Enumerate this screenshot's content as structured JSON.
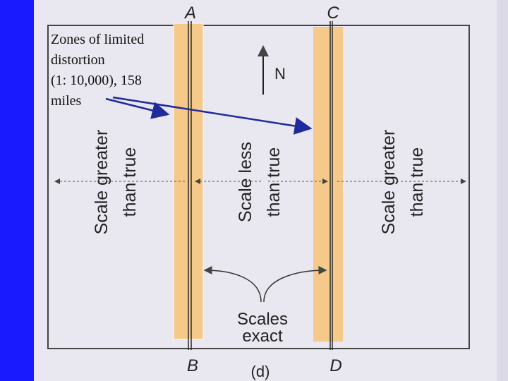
{
  "diagram": {
    "title": "(d)",
    "top_labels": {
      "left": "A",
      "right": "C"
    },
    "bottom_labels": {
      "left": "B",
      "right": "D"
    },
    "north_label": "N",
    "zones": {
      "left": [
        "Scale greater",
        "than true"
      ],
      "middle": [
        "Scale less",
        "than true"
      ],
      "right": [
        "Scale greater",
        "than true"
      ]
    },
    "scales_exact": [
      "Scales",
      "exact"
    ],
    "annotation": [
      "Zones of limited",
      "distortion",
      "(1: 10,000), 158",
      "miles"
    ],
    "colors": {
      "background": "#1a1aff",
      "paper": "#e9e7ef",
      "band": "#f4c98a",
      "line": "#2a2a2a",
      "arrow": "#1f2a9c"
    }
  }
}
